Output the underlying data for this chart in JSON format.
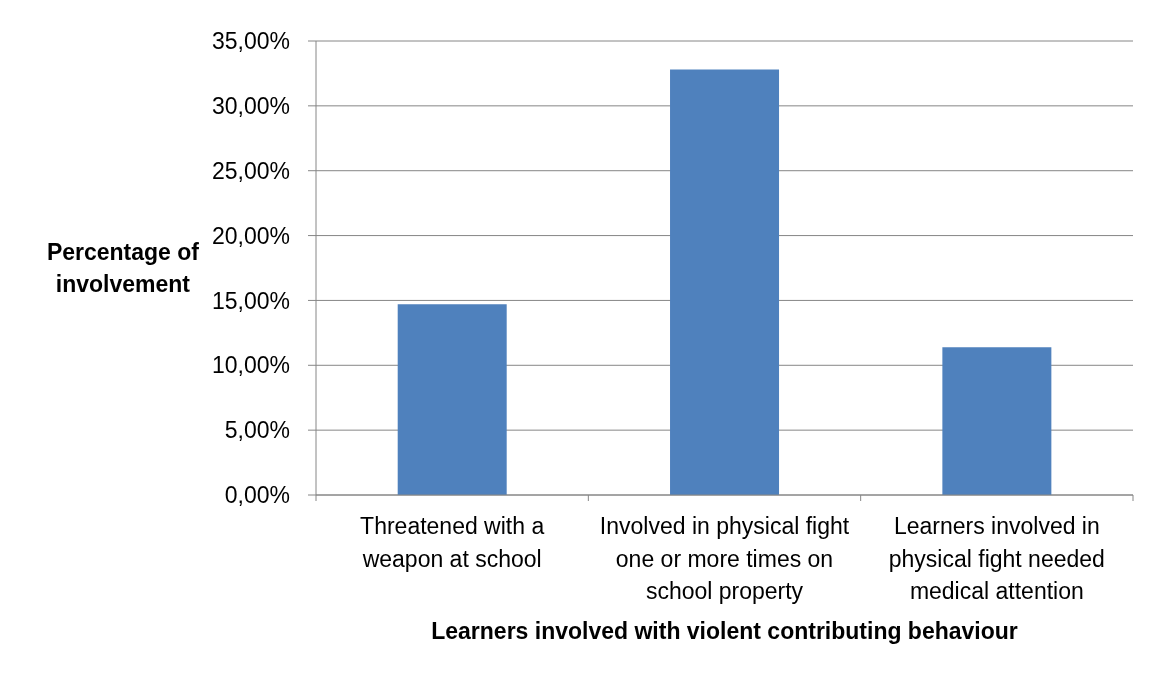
{
  "chart_data": {
    "type": "bar",
    "xlabel": "Learners involved with violent contributing behaviour",
    "ylabel": "Percentage of involvement",
    "categories": [
      "Threatened with a weapon at school",
      "Involved in physical fight one or more times on school property",
      "Learners involved in physical fight needed medical attention"
    ],
    "values": [
      14.7,
      32.8,
      11.4
    ],
    "color": "#4f81bd",
    "ylim": [
      0,
      35
    ],
    "yticks": [
      {
        "value": 0,
        "label": "0,00%"
      },
      {
        "value": 5,
        "label": "5,00%"
      },
      {
        "value": 10,
        "label": "10,00%"
      },
      {
        "value": 15,
        "label": "15,00%"
      },
      {
        "value": 20,
        "label": "20,00%"
      },
      {
        "value": 25,
        "label": "25,00%"
      },
      {
        "value": 30,
        "label": "30,00%"
      },
      {
        "value": 35,
        "label": "35,00%"
      }
    ],
    "grid": "y"
  }
}
